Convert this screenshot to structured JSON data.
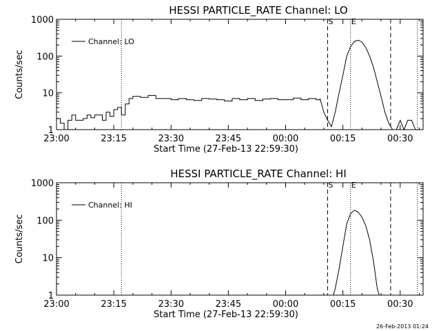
{
  "timestamp": "26-Feb-2013 01:24",
  "chart_data": [
    {
      "type": "line",
      "title": "HESSI PARTICLE_RATE Channel: LO",
      "xlabel": "Start Time (27-Feb-13 22:59:30)",
      "ylabel": "Counts/sec",
      "y_scale": "log",
      "ylim": [
        1,
        1000
      ],
      "xlim_minutes": [
        0,
        96
      ],
      "x_ticks": [
        {
          "t": 0,
          "label": "23:00"
        },
        {
          "t": 15,
          "label": "23:15"
        },
        {
          "t": 30,
          "label": "23:30"
        },
        {
          "t": 45,
          "label": "23:45"
        },
        {
          "t": 60,
          "label": "00:00"
        },
        {
          "t": 75,
          "label": "00:15"
        },
        {
          "t": 90,
          "label": "00:30"
        }
      ],
      "y_ticks": [
        {
          "v": 1,
          "label": "1"
        },
        {
          "v": 10,
          "label": "10"
        },
        {
          "v": 100,
          "label": "100"
        },
        {
          "v": 1000,
          "label": "1000"
        }
      ],
      "legend": {
        "label": "Channel: LO",
        "position": "top-left"
      },
      "markers": [
        {
          "t": 71,
          "label": "S",
          "style": "dashed"
        },
        {
          "t": 77,
          "label": "E",
          "style": "dotted"
        }
      ],
      "vlines": [
        {
          "t": 17,
          "style": "dotted"
        },
        {
          "t": 87.5,
          "style": "dashed"
        },
        {
          "t": 94.5,
          "style": "dotted"
        }
      ],
      "series": [
        {
          "x": [
            0,
            1,
            2,
            3,
            4,
            5,
            6,
            7,
            8,
            9,
            10,
            11,
            12,
            13,
            14,
            15,
            16,
            17,
            18,
            19,
            20,
            22,
            24,
            26,
            28,
            30,
            32,
            34,
            36,
            38,
            40,
            42,
            44,
            46,
            48,
            50,
            52,
            54,
            56,
            58,
            60,
            62,
            64,
            66,
            68,
            69,
            70,
            71,
            72,
            73,
            74,
            75,
            76,
            77,
            78,
            79,
            80,
            81,
            82,
            83,
            84,
            85,
            86,
            87,
            88,
            89,
            90,
            91,
            92,
            93,
            94
          ],
          "y": [
            2,
            1.5,
            0.9,
            1.8,
            2.5,
            1.8,
            1.8,
            2,
            2.5,
            2.1,
            2.5,
            2.5,
            1.8,
            3,
            2.3,
            3.5,
            4,
            2.5,
            5,
            7,
            8,
            7.5,
            8.5,
            7,
            7,
            6.5,
            7,
            6.5,
            6.2,
            7,
            6.8,
            6.5,
            6,
            7,
            6.5,
            7,
            6.2,
            6.8,
            7,
            6.5,
            6.5,
            7.2,
            6.5,
            7,
            6.5,
            7,
            3,
            1.8,
            1.2,
            3,
            10,
            30,
            100,
            180,
            250,
            270,
            240,
            170,
            100,
            50,
            20,
            8,
            3,
            1.5,
            1,
            0.9,
            1.8,
            0.9,
            1.8,
            1.8,
            0.9
          ]
        }
      ]
    },
    {
      "type": "line",
      "title": "HESSI PARTICLE_RATE Channel: HI",
      "xlabel": "Start Time (27-Feb-13 22:59:30)",
      "ylabel": "Counts/sec",
      "y_scale": "log",
      "ylim": [
        1,
        1000
      ],
      "xlim_minutes": [
        0,
        96
      ],
      "x_ticks": [
        {
          "t": 0,
          "label": "23:00"
        },
        {
          "t": 15,
          "label": "23:15"
        },
        {
          "t": 30,
          "label": "23:30"
        },
        {
          "t": 45,
          "label": "23:45"
        },
        {
          "t": 60,
          "label": "00:00"
        },
        {
          "t": 75,
          "label": "00:15"
        },
        {
          "t": 90,
          "label": "00:30"
        }
      ],
      "y_ticks": [
        {
          "v": 1,
          "label": "1"
        },
        {
          "v": 10,
          "label": "10"
        },
        {
          "v": 100,
          "label": "100"
        },
        {
          "v": 1000,
          "label": "1000"
        }
      ],
      "legend": {
        "label": "Channel: HI",
        "position": "top-left"
      },
      "markers": [
        {
          "t": 71,
          "label": "S",
          "style": "dashed"
        },
        {
          "t": 77,
          "label": "E",
          "style": "dotted"
        }
      ],
      "vlines": [
        {
          "t": 17,
          "style": "dotted"
        },
        {
          "t": 87.5,
          "style": "dashed"
        },
        {
          "t": 94.5,
          "style": "dotted"
        }
      ],
      "series": [
        {
          "x": [
            72.5,
            73,
            74,
            75,
            76,
            77,
            78,
            79,
            80,
            81,
            82,
            83,
            84,
            84.5
          ],
          "y": [
            1,
            1.5,
            5,
            20,
            80,
            150,
            185,
            165,
            120,
            70,
            30,
            8,
            1.5,
            1
          ]
        }
      ]
    }
  ]
}
